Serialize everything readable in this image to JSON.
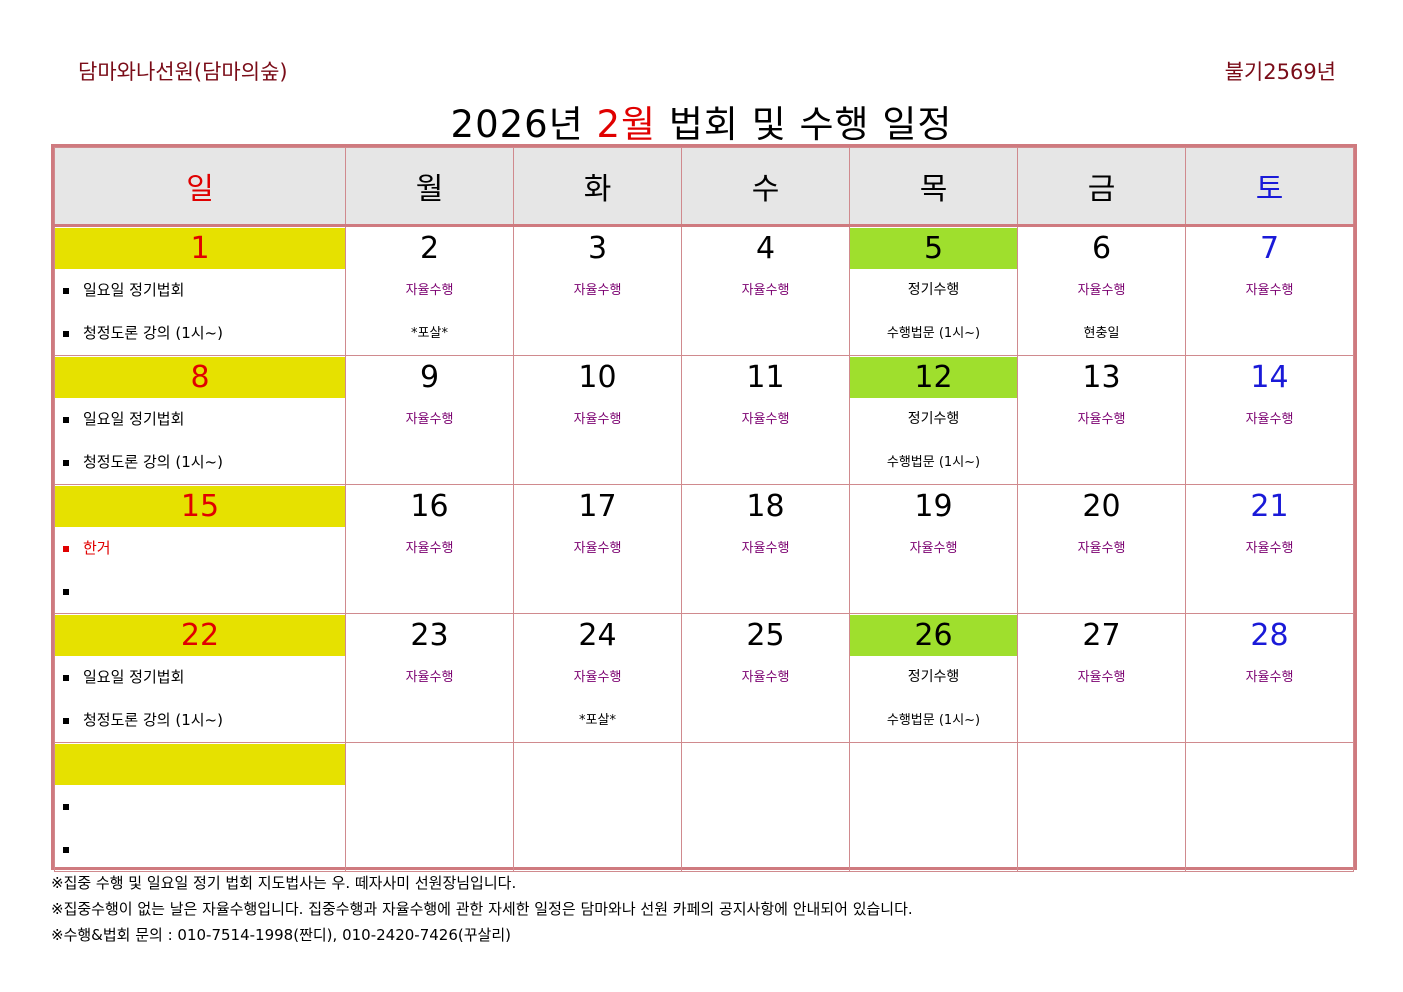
{
  "header": {
    "org": "담마와나선원(담마의숲)",
    "year": "불기2569년"
  },
  "title": {
    "pre": "2026년 ",
    "month": "2월",
    "post": " 법회 및 수행 일정"
  },
  "weekdays": [
    "일",
    "월",
    "화",
    "수",
    "목",
    "금",
    "토"
  ],
  "rows": [
    {
      "sun": {
        "day": "1",
        "items": [
          "일요일 정기법회",
          "청정도론 강의 (1시~)"
        ]
      },
      "mon": {
        "day": "2",
        "l1": "자율수행",
        "l2": "*포살*"
      },
      "tue": {
        "day": "3",
        "l1": "자율수행",
        "l2": ""
      },
      "wed": {
        "day": "4",
        "l1": "자율수행",
        "l2": ""
      },
      "thu": {
        "day": "5",
        "l1": "정기수행",
        "l2": "수행법문 (1시~)"
      },
      "fri": {
        "day": "6",
        "l1": "자율수행",
        "l2": "현충일"
      },
      "sat": {
        "day": "7",
        "l1": "자율수행",
        "l2": ""
      }
    },
    {
      "sun": {
        "day": "8",
        "items": [
          "일요일 정기법회",
          "청정도론 강의 (1시~)"
        ]
      },
      "mon": {
        "day": "9",
        "l1": "자율수행",
        "l2": ""
      },
      "tue": {
        "day": "10",
        "l1": "자율수행",
        "l2": ""
      },
      "wed": {
        "day": "11",
        "l1": "자율수행",
        "l2": ""
      },
      "thu": {
        "day": "12",
        "l1": "정기수행",
        "l2": "수행법문 (1시~)"
      },
      "fri": {
        "day": "13",
        "l1": "자율수행",
        "l2": ""
      },
      "sat": {
        "day": "14",
        "l1": "자율수행",
        "l2": ""
      }
    },
    {
      "sun": {
        "day": "15",
        "items": [
          "한거",
          ""
        ]
      },
      "mon": {
        "day": "16",
        "l1": "자율수행",
        "l2": ""
      },
      "tue": {
        "day": "17",
        "l1": "자율수행",
        "l2": ""
      },
      "wed": {
        "day": "18",
        "l1": "자율수행",
        "l2": ""
      },
      "thu": {
        "day": "19",
        "l1": "자율수행",
        "l2": ""
      },
      "fri": {
        "day": "20",
        "l1": "자율수행",
        "l2": ""
      },
      "sat": {
        "day": "21",
        "l1": "자율수행",
        "l2": ""
      }
    },
    {
      "sun": {
        "day": "22",
        "items": [
          "일요일 정기법회",
          "청정도론 강의 (1시~)"
        ]
      },
      "mon": {
        "day": "23",
        "l1": "자율수행",
        "l2": ""
      },
      "tue": {
        "day": "24",
        "l1": "자율수행",
        "l2": "*포살*"
      },
      "wed": {
        "day": "25",
        "l1": "자율수행",
        "l2": ""
      },
      "thu": {
        "day": "26",
        "l1": "정기수행",
        "l2": "수행법문 (1시~)"
      },
      "fri": {
        "day": "27",
        "l1": "자율수행",
        "l2": ""
      },
      "sat": {
        "day": "28",
        "l1": "자율수행",
        "l2": ""
      }
    }
  ],
  "footer": [
    "※집중 수행 및 일요일 정기 법회 지도법사는 우. 떼자사미 선원장님입니다.",
    "※집중수행이 없는 날은 자율수행입니다. 집중수행과 자율수행에 관한 자세한 일정은 담마와나 선원 카페의 공지사항에 안내되어 있습니다.",
    "※수행&법회 문의 : 010-7514-1998(짠디), 010-2420-7426(꾸살리)"
  ]
}
